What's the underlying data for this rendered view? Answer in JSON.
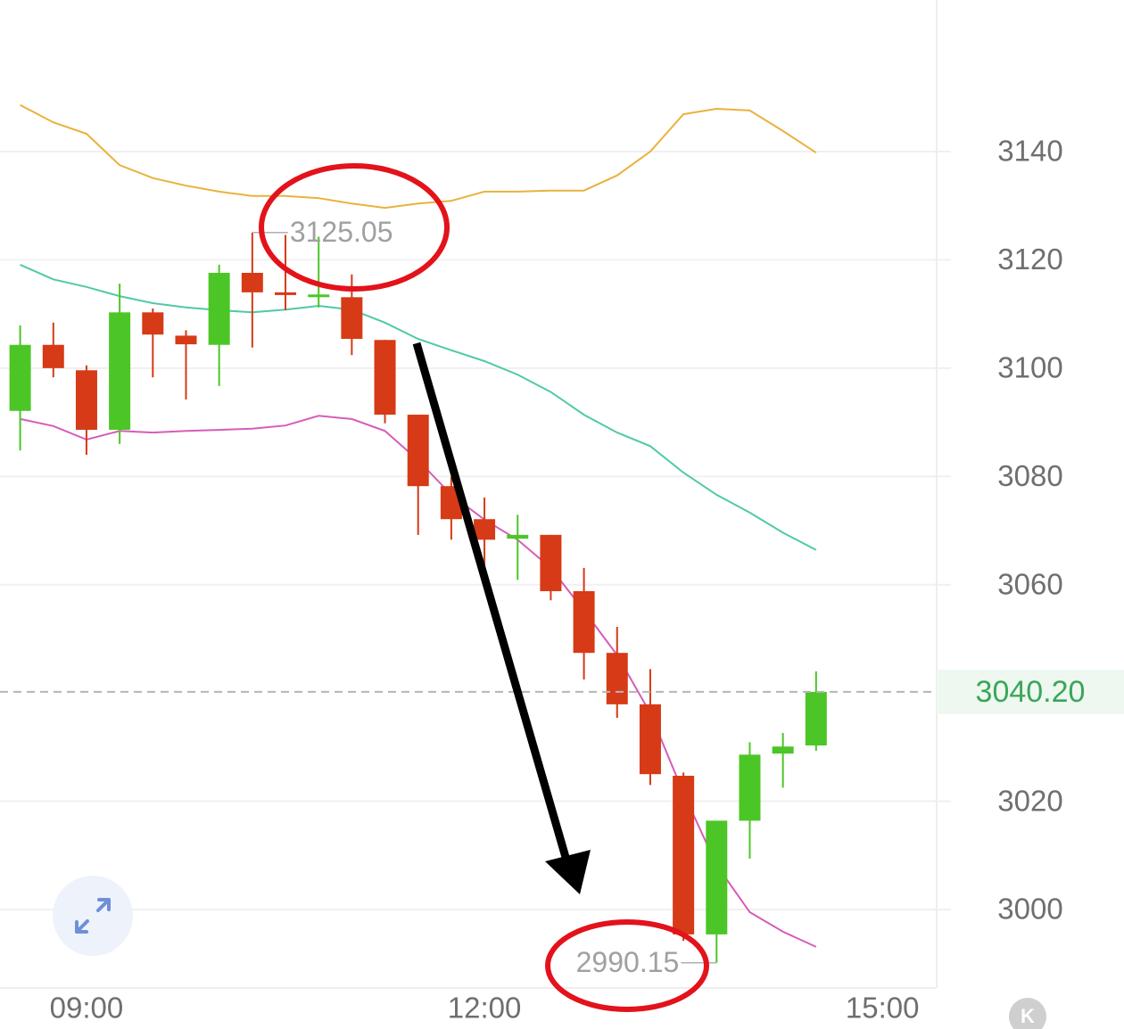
{
  "chart_data": {
    "type": "candlestick",
    "x": [
      8.5,
      8.75,
      9,
      9.25,
      9.5,
      9.75,
      10,
      10.25,
      10.5,
      10.75,
      11,
      11.25,
      11.5,
      11.75,
      12,
      12.25,
      12.5,
      12.75,
      13,
      13.25,
      13.5,
      13.75,
      14,
      14.25,
      14.5
    ],
    "open": [
      3092.1,
      3104.3,
      3099.6,
      3088.6,
      3110.3,
      3106.0,
      3104.3,
      3117.6,
      3114.0,
      3113.3,
      3113.1,
      3105.2,
      3091.4,
      3078.2,
      3072.1,
      3068.5,
      3069.2,
      3058.8,
      3047.4,
      3037.9,
      3024.7,
      2995.4,
      3016.4,
      3028.8,
      3030.3
    ],
    "high": [
      3107.9,
      3108.4,
      3100.5,
      3115.6,
      3111.0,
      3107.0,
      3119.1,
      3125.05,
      3124.6,
      3124.3,
      3117.3,
      3105.2,
      3091.4,
      3079.9,
      3076.1,
      3072.9,
      3069.2,
      3063.1,
      3052.2,
      3044.4,
      3025.3,
      3016.4,
      3030.9,
      3032.6,
      3044.0
    ],
    "low": [
      3084.8,
      3098.3,
      3084.0,
      3086.0,
      3098.3,
      3094.2,
      3096.7,
      3103.8,
      3110.7,
      3111.2,
      3102.4,
      3089.8,
      3069.2,
      3068.3,
      3063.4,
      3060.9,
      3057.1,
      3042.5,
      3035.4,
      3023.0,
      2994.2,
      2990.15,
      3009.4,
      3022.5,
      3029.3
    ],
    "close": [
      3104.3,
      3100.0,
      3088.6,
      3110.3,
      3106.2,
      3104.4,
      3117.6,
      3114.0,
      3113.5,
      3113.6,
      3105.4,
      3091.4,
      3078.2,
      3072.1,
      3068.3,
      3069.2,
      3058.8,
      3047.4,
      3037.9,
      3025.0,
      2995.4,
      3016.4,
      3028.6,
      3030.1,
      3040.2
    ],
    "up_color": "#4cc626",
    "down_color": "#d63a16",
    "bands": {
      "upper": {
        "color": "#e9b23c",
        "values": [
          3148.6,
          3145.4,
          3143.3,
          3137.5,
          3135.1,
          3133.7,
          3132.6,
          3131.8,
          3131.8,
          3131.4,
          3130.4,
          3129.6,
          3130.4,
          3130.9,
          3132.6,
          3132.6,
          3132.8,
          3132.8,
          3135.6,
          3140.0,
          3146.9,
          3147.9,
          3147.6,
          3143.8,
          3139.8
        ]
      },
      "middle": {
        "color": "#4fc9a9",
        "values": [
          3119.1,
          3116.4,
          3115.0,
          3113.3,
          3112.0,
          3111.2,
          3110.7,
          3110.3,
          3110.8,
          3111.5,
          3110.8,
          3108.4,
          3105.4,
          3103.3,
          3101.3,
          3098.8,
          3095.6,
          3091.4,
          3088.1,
          3085.6,
          3080.7,
          3076.6,
          3073.3,
          3069.6,
          3066.4
        ]
      },
      "lower": {
        "color": "#d65cb9",
        "values": [
          3090.6,
          3089.3,
          3086.8,
          3088.4,
          3088.1,
          3088.4,
          3088.6,
          3088.8,
          3089.4,
          3091.2,
          3090.6,
          3088.4,
          3083.0,
          3076.6,
          3072.0,
          3068.3,
          3063.1,
          3055.2,
          3047.0,
          3036.3,
          3021.5,
          3008.2,
          2999.5,
          2995.9,
          2993.1
        ]
      }
    },
    "xlim": [
      8.348,
      15.409
    ],
    "xticks": [
      {
        "value": 9,
        "label": "09:00"
      },
      {
        "value": 12,
        "label": "12:00"
      },
      {
        "value": 15,
        "label": "15:00"
      }
    ],
    "ylim": [
      2985.5,
      3168.0
    ],
    "yticks": [
      3000,
      3020,
      3060,
      3080,
      3100,
      3120,
      3140
    ],
    "grid": true,
    "high_label": 3125.05,
    "low_label": 2990.15,
    "last_price": {
      "value": 3040.2,
      "label": "3040.20",
      "color": "#3aa65a"
    }
  },
  "ui": {
    "kline_button": "K"
  }
}
